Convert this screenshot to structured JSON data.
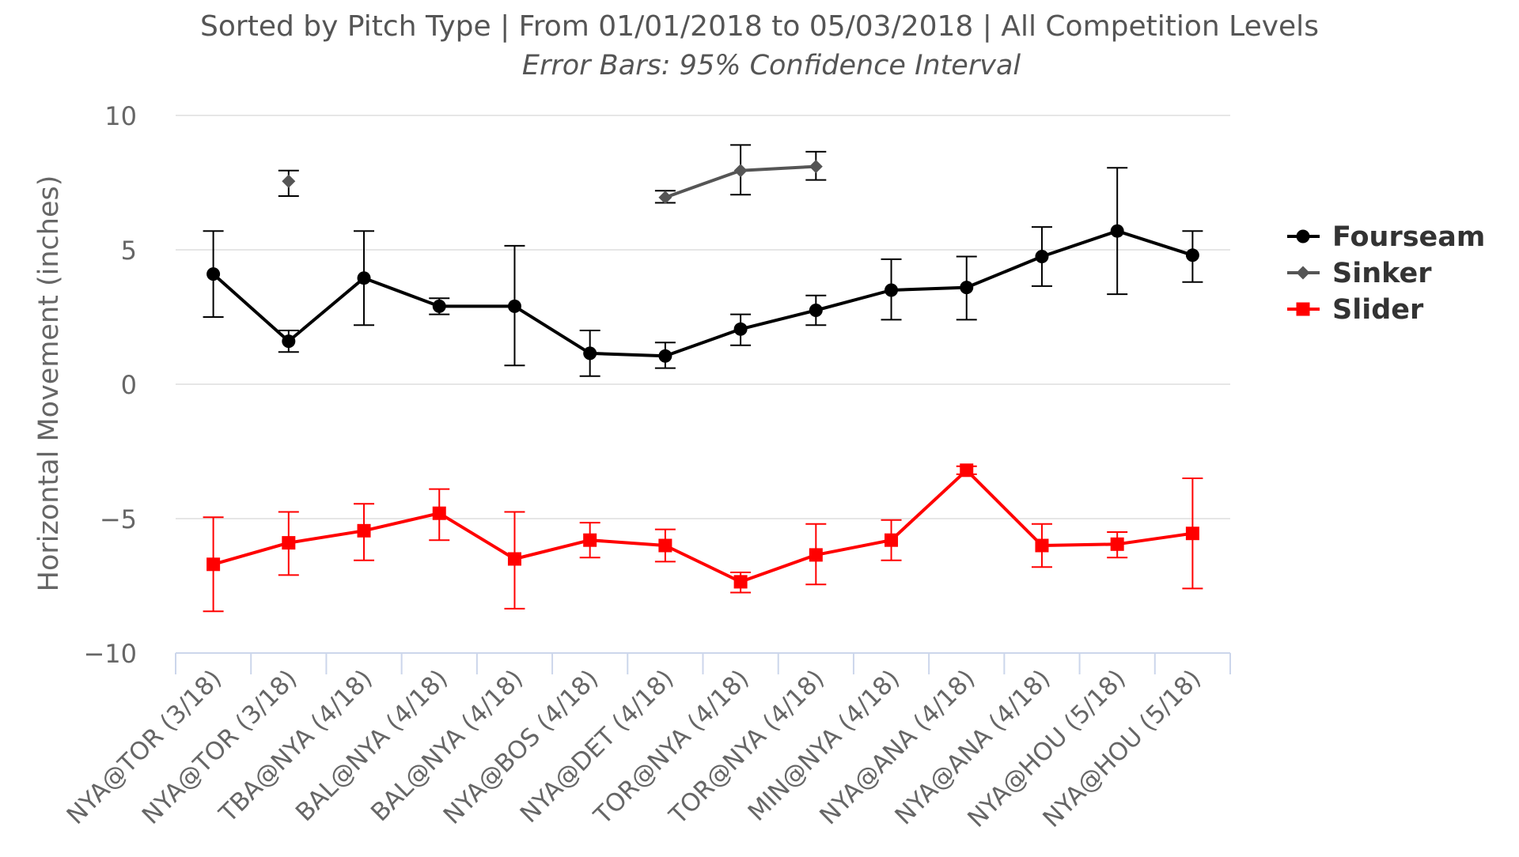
{
  "chart_data": {
    "type": "line",
    "title": "Sorted by Pitch Type | From 01/01/2018 to 05/03/2018 | All Competition Levels",
    "subtitle": "Error Bars: 95% Confidence Interval",
    "xlabel": "",
    "ylabel": "Horizontal Movement (inches)",
    "ylim": [
      -10,
      10
    ],
    "yticks": [
      10,
      5,
      0,
      -5,
      -10
    ],
    "ytick_labels": [
      "10",
      "5",
      "0",
      "−5",
      "−10"
    ],
    "grid": true,
    "legend_position": "right",
    "categories": [
      "NYA@TOR (3/18)",
      "NYA@TOR (3/18)",
      "TBA@NYA (4/18)",
      "BAL@NYA (4/18)",
      "BAL@NYA (4/18)",
      "NYA@BOS (4/18)",
      "NYA@DET (4/18)",
      "TOR@NYA (4/18)",
      "TOR@NYA (4/18)",
      "MIN@NYA (4/18)",
      "NYA@ANA (4/18)",
      "NYA@ANA (4/18)",
      "NYA@HOU (5/18)",
      "NYA@HOU (5/18)"
    ],
    "series": [
      {
        "name": "Fourseam",
        "color": "#000000",
        "marker": "circle",
        "values": [
          4.1,
          1.6,
          3.95,
          2.9,
          2.9,
          1.15,
          1.05,
          2.05,
          2.75,
          3.5,
          3.6,
          4.75,
          5.7,
          4.8
        ],
        "error_low": [
          2.5,
          1.2,
          2.2,
          2.6,
          0.7,
          0.3,
          0.6,
          1.45,
          2.2,
          2.4,
          2.4,
          3.65,
          3.35,
          3.8
        ],
        "error_high": [
          5.7,
          2.0,
          5.7,
          3.2,
          5.15,
          2.0,
          1.55,
          2.6,
          3.3,
          4.65,
          4.75,
          5.85,
          8.05,
          5.7
        ]
      },
      {
        "name": "Sinker",
        "color": "#555555",
        "marker": "diamond",
        "values": [
          null,
          7.55,
          null,
          null,
          null,
          null,
          6.95,
          7.95,
          8.1,
          null,
          null,
          null,
          null,
          null
        ],
        "error_low": [
          null,
          7.0,
          null,
          null,
          null,
          null,
          6.75,
          7.05,
          7.6,
          null,
          null,
          null,
          null,
          null
        ],
        "error_high": [
          null,
          7.95,
          null,
          null,
          null,
          null,
          7.2,
          8.9,
          8.65,
          null,
          null,
          null,
          null,
          null
        ]
      },
      {
        "name": "Slider",
        "color": "#ff0000",
        "marker": "square",
        "values": [
          -6.7,
          -5.9,
          -5.45,
          -4.8,
          -6.5,
          -5.8,
          -6.0,
          -7.35,
          -6.35,
          -5.8,
          -3.2,
          -6.0,
          -5.95,
          -5.55
        ],
        "error_low": [
          -8.45,
          -7.1,
          -6.55,
          -5.8,
          -8.35,
          -6.45,
          -6.6,
          -7.75,
          -7.45,
          -6.55,
          -3.35,
          -6.8,
          -6.45,
          -7.6
        ],
        "error_high": [
          -4.95,
          -4.75,
          -4.45,
          -3.9,
          -4.75,
          -5.15,
          -5.4,
          -7.0,
          -5.2,
          -5.05,
          -3.05,
          -5.2,
          -5.5,
          -3.5
        ]
      }
    ]
  }
}
